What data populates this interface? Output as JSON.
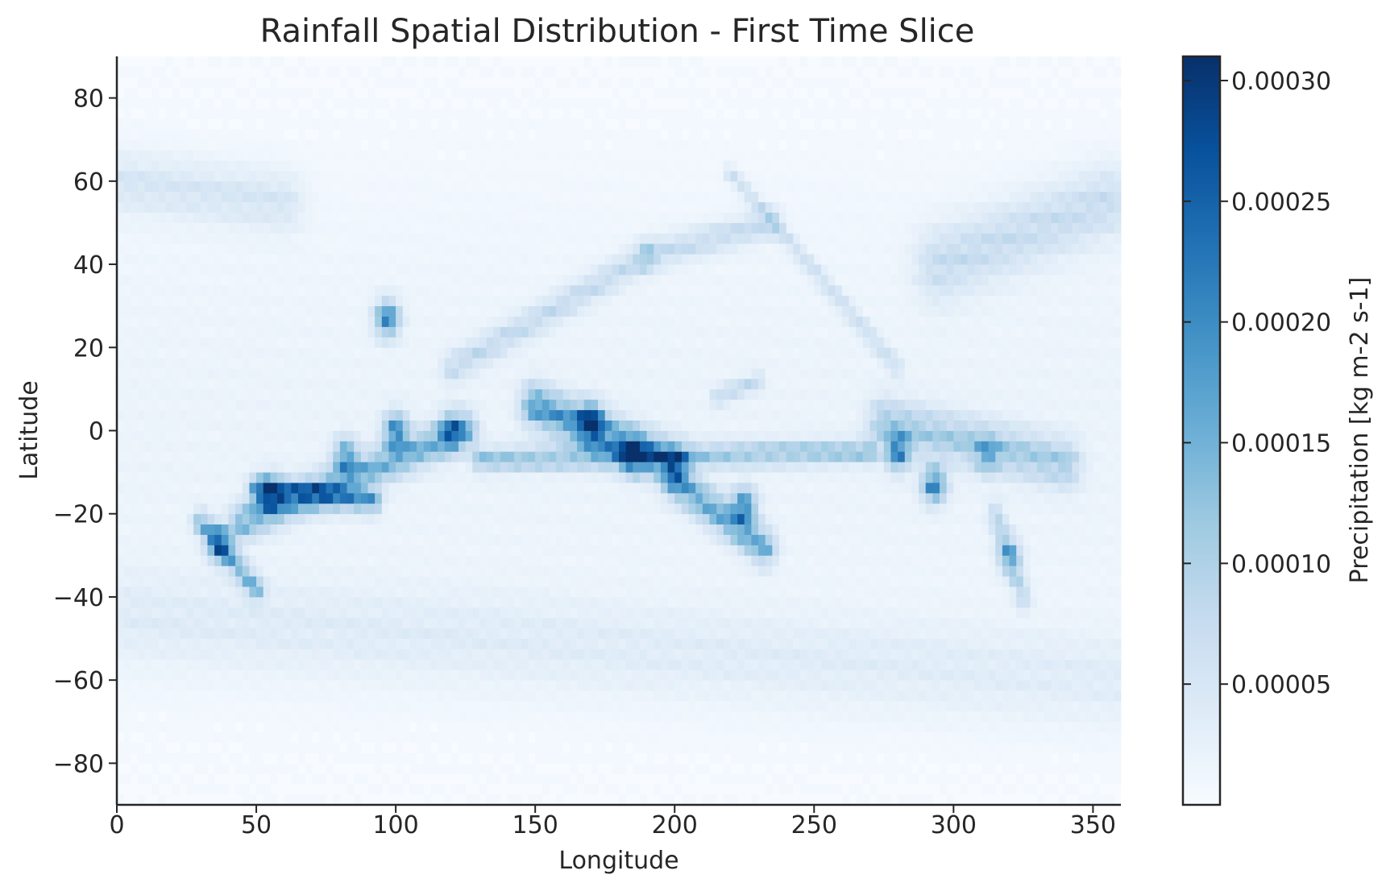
{
  "chart_data": {
    "type": "heatmap",
    "title": "Rainfall Spatial Distribution - First Time Slice",
    "xlabel": "Longitude",
    "ylabel": "Latitude",
    "xlim": [
      0,
      360
    ],
    "ylim": [
      -90,
      90
    ],
    "xticks": [
      0,
      50,
      100,
      150,
      200,
      250,
      300,
      350
    ],
    "xtick_labels": [
      "0",
      "50",
      "100",
      "150",
      "200",
      "250",
      "300",
      "350"
    ],
    "yticks": [
      80,
      60,
      40,
      20,
      0,
      -20,
      -40,
      -60,
      -80
    ],
    "ytick_labels": [
      "80",
      "60",
      "40",
      "20",
      "0",
      "−20",
      "−40",
      "−60",
      "−80"
    ],
    "colorbar": {
      "label": "Precipitation [kg m-2 s-1]",
      "colormap": "Blues",
      "vmin": 0.0,
      "vmax": 0.00031,
      "ticks": [
        5e-05,
        0.0001,
        0.00015,
        0.0002,
        0.00025,
        0.0003
      ],
      "tick_labels": [
        "0.00005",
        "0.00010",
        "0.00015",
        "0.00020",
        "0.00025",
        "0.00030"
      ]
    },
    "grid": false,
    "features": [
      {
        "lon": 170,
        "lat": 2,
        "value": 0.0003
      },
      {
        "lon": 185,
        "lat": -6,
        "value": 0.00022
      },
      {
        "lon": 225,
        "lat": -18,
        "value": 0.00025
      },
      {
        "lon": 55,
        "lat": -15,
        "value": 0.00022
      },
      {
        "lon": 82,
        "lat": -6,
        "value": 0.00021
      },
      {
        "lon": 100,
        "lat": 0,
        "value": 0.00026
      },
      {
        "lon": 120,
        "lat": 0,
        "value": 0.0002
      },
      {
        "lon": 37,
        "lat": -27,
        "value": 0.00024
      },
      {
        "lon": 280,
        "lat": -5,
        "value": 0.00026
      },
      {
        "lon": 293,
        "lat": -13,
        "value": 0.00027
      },
      {
        "lon": 97,
        "lat": 27,
        "value": 0.00027
      },
      {
        "lon": 320,
        "lat": -30,
        "value": 0.00014
      },
      {
        "lon": 312,
        "lat": -6,
        "value": 0.00012
      }
    ],
    "bands": [
      {
        "type": "line",
        "p1": [
          45,
          -22
        ],
        "p2": [
          125,
          0
        ],
        "value": 0.00013,
        "width": 6
      },
      {
        "type": "line",
        "p1": [
          50,
          -14
        ],
        "p2": [
          92,
          -17
        ],
        "value": 0.00015,
        "width": 4
      },
      {
        "type": "line",
        "p1": [
          130,
          -7
        ],
        "p2": [
          270,
          -5
        ],
        "value": 0.0001,
        "width": 4
      },
      {
        "type": "line",
        "p1": [
          200,
          -12
        ],
        "p2": [
          232,
          -28
        ],
        "value": 0.00014,
        "width": 6
      },
      {
        "type": "line",
        "p1": [
          150,
          6
        ],
        "p2": [
          200,
          -8
        ],
        "value": 0.00016,
        "width": 7
      },
      {
        "type": "line",
        "p1": [
          30,
          -22
        ],
        "p2": [
          50,
          -38
        ],
        "value": 0.00012,
        "width": 4
      },
      {
        "type": "line",
        "p1": [
          275,
          2
        ],
        "p2": [
          340,
          -8
        ],
        "value": 9e-05,
        "width": 8
      },
      {
        "type": "line",
        "p1": [
          120,
          15
        ],
        "p2": [
          190,
          42
        ],
        "value": 6e-05,
        "width": 5
      },
      {
        "type": "line",
        "p1": [
          190,
          42
        ],
        "p2": [
          235,
          50
        ],
        "value": 6e-05,
        "width": 5
      },
      {
        "type": "line",
        "p1": [
          220,
          62
        ],
        "p2": [
          280,
          15
        ],
        "value": 5e-05,
        "width": 3
      },
      {
        "type": "line",
        "p1": [
          295,
          40
        ],
        "p2": [
          355,
          55
        ],
        "value": 6e-05,
        "width": 12
      },
      {
        "type": "line",
        "p1": [
          0,
          60
        ],
        "p2": [
          60,
          55
        ],
        "value": 4e-05,
        "width": 10
      },
      {
        "type": "line",
        "p1": [
          5,
          -45
        ],
        "p2": [
          360,
          -60
        ],
        "value": 2.5e-05,
        "width": 16
      },
      {
        "type": "line",
        "p1": [
          315,
          -20
        ],
        "p2": [
          325,
          -40
        ],
        "value": 7e-05,
        "width": 4
      },
      {
        "type": "line",
        "p1": [
          215,
          8
        ],
        "p2": [
          230,
          12
        ],
        "value": 6e-05,
        "width": 3
      }
    ]
  }
}
